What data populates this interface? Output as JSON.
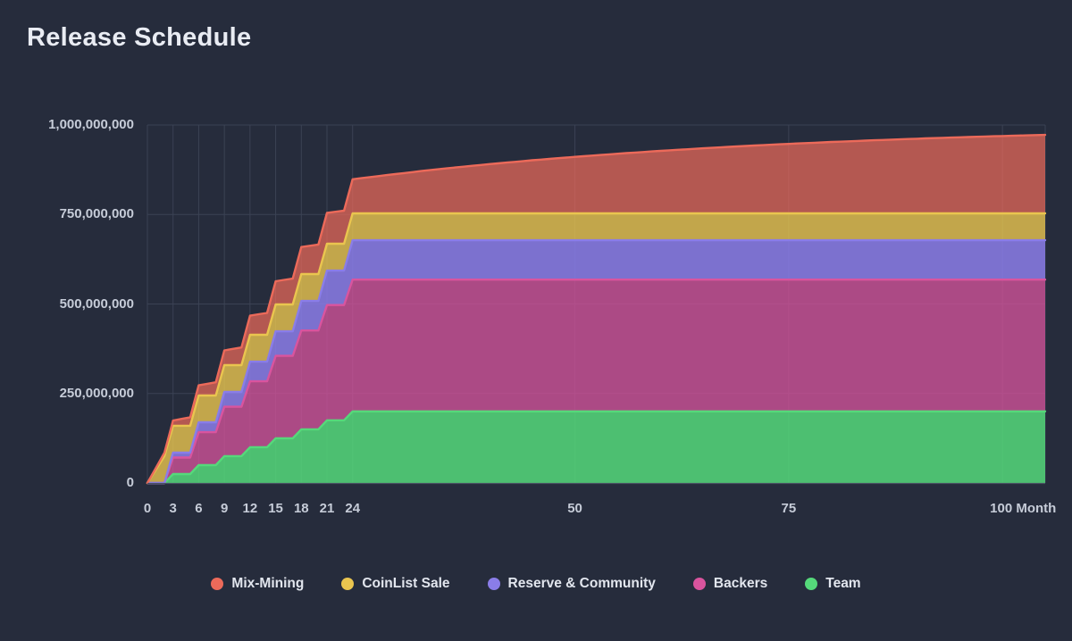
{
  "page": {
    "background_color": "#262c3c"
  },
  "colors": {
    "background": "#262c3c",
    "grid": "#3b4254",
    "axis_line": "#495062",
    "axis_text": "#c6ccd8",
    "title_text": "#e9ecf3",
    "legend_text": "#e2e6ee"
  },
  "chart_data": {
    "type": "area",
    "stacked": true,
    "title": "Release Schedule",
    "xlabel": "",
    "ylabel": "",
    "x_unit": "Month",
    "x_range": [
      0,
      105
    ],
    "y_range_tokens": [
      0,
      1000000000
    ],
    "value_unit_multiplier": 1000000,
    "grid": true,
    "legend_position": "bottom",
    "x_ticks": [
      {
        "month": 0,
        "label": "0"
      },
      {
        "month": 3,
        "label": "3"
      },
      {
        "month": 6,
        "label": "6"
      },
      {
        "month": 9,
        "label": "9"
      },
      {
        "month": 12,
        "label": "12"
      },
      {
        "month": 15,
        "label": "15"
      },
      {
        "month": 18,
        "label": "18"
      },
      {
        "month": 21,
        "label": "21"
      },
      {
        "month": 24,
        "label": "24"
      },
      {
        "month": 50,
        "label": "50"
      },
      {
        "month": 75,
        "label": "75"
      },
      {
        "month": 100,
        "label": "100 Month"
      }
    ],
    "y_ticks": [
      {
        "value_millions": 0,
        "label": "0"
      },
      {
        "value_millions": 250,
        "label": "250,000,000"
      },
      {
        "value_millions": 500,
        "label": "500,000,000"
      },
      {
        "value_millions": 750,
        "label": "750,000,000"
      },
      {
        "value_millions": 1000,
        "label": "1,000,000,000"
      }
    ],
    "series": [
      {
        "name": "Team",
        "color": "#55d97a",
        "fill_opacity": 0.85,
        "total_millions": 200,
        "vesting_note": "quarterly unlocks of 25M from month 3 to 24",
        "points_month_millions": [
          [
            0,
            0
          ],
          [
            2,
            0
          ],
          [
            3,
            25
          ],
          [
            5,
            25
          ],
          [
            6,
            50
          ],
          [
            8,
            50
          ],
          [
            9,
            75
          ],
          [
            11,
            75
          ],
          [
            12,
            100
          ],
          [
            14,
            100
          ],
          [
            15,
            125
          ],
          [
            17,
            125
          ],
          [
            18,
            150
          ],
          [
            20,
            150
          ],
          [
            21,
            175
          ],
          [
            23,
            175
          ],
          [
            24,
            200
          ],
          [
            105,
            200
          ]
        ]
      },
      {
        "name": "Backers",
        "color": "#d9549e",
        "fill_opacity": 0.75,
        "total_millions": 368,
        "vesting_note": "quarterly unlocks of 46M from month 3 to 24",
        "points_month_millions": [
          [
            0,
            0
          ],
          [
            2,
            0
          ],
          [
            3,
            46
          ],
          [
            5,
            46
          ],
          [
            6,
            92
          ],
          [
            8,
            92
          ],
          [
            9,
            138
          ],
          [
            11,
            138
          ],
          [
            12,
            184
          ],
          [
            14,
            184
          ],
          [
            15,
            230
          ],
          [
            17,
            230
          ],
          [
            18,
            276
          ],
          [
            20,
            276
          ],
          [
            21,
            322
          ],
          [
            23,
            322
          ],
          [
            24,
            368
          ],
          [
            105,
            368
          ]
        ]
      },
      {
        "name": "Reserve & Community",
        "color": "#8a7de8",
        "fill_opacity": 0.86,
        "total_millions": 110,
        "vesting_note": "quarterly unlocks of 13.75M from month 3 to 24",
        "points_month_millions": [
          [
            0,
            0
          ],
          [
            2,
            0
          ],
          [
            3,
            13.75
          ],
          [
            5,
            13.75
          ],
          [
            6,
            27.5
          ],
          [
            8,
            27.5
          ],
          [
            9,
            41.25
          ],
          [
            11,
            41.25
          ],
          [
            12,
            55
          ],
          [
            14,
            55
          ],
          [
            15,
            68.75
          ],
          [
            17,
            68.75
          ],
          [
            18,
            82.5
          ],
          [
            20,
            82.5
          ],
          [
            21,
            96.25
          ],
          [
            23,
            96.25
          ],
          [
            24,
            110
          ],
          [
            105,
            110
          ]
        ]
      },
      {
        "name": "CoinList Sale",
        "color": "#eac54f",
        "fill_opacity": 0.8,
        "total_millions": 75,
        "vesting_note": "fully unlocked by month 2",
        "points_month_millions": [
          [
            0,
            0
          ],
          [
            1,
            37.5
          ],
          [
            2,
            75
          ],
          [
            105,
            75
          ]
        ]
      },
      {
        "name": "Mix-Mining",
        "color": "#ec6a5a",
        "fill_opacity": 0.72,
        "total_millions": 250,
        "vesting_note": "continuous emission, decaying rate; ~95M by month 24, ~216M by month 100",
        "points_month_millions": [
          [
            0,
            0
          ],
          [
            1,
            5
          ],
          [
            2,
            9.8
          ],
          [
            3,
            14.6
          ],
          [
            4,
            19.2
          ],
          [
            5,
            23.8
          ],
          [
            6,
            28.3
          ],
          [
            8,
            36.9
          ],
          [
            10,
            45.3
          ],
          [
            12,
            53.3
          ],
          [
            14,
            61.1
          ],
          [
            16,
            68.5
          ],
          [
            18,
            75.7
          ],
          [
            20,
            82.7
          ],
          [
            22,
            89.3
          ],
          [
            24,
            95.3
          ],
          [
            28,
            107.2
          ],
          [
            32,
            118.2
          ],
          [
            36,
            128.3
          ],
          [
            40,
            137.7
          ],
          [
            45,
            148.4
          ],
          [
            50,
            158
          ],
          [
            55,
            166.8
          ],
          [
            60,
            174.7
          ],
          [
            65,
            181.9
          ],
          [
            70,
            188.4
          ],
          [
            75,
            194.2
          ],
          [
            80,
            199.5
          ],
          [
            85,
            204.3
          ],
          [
            90,
            208.7
          ],
          [
            95,
            212.6
          ],
          [
            100,
            216.2
          ],
          [
            105,
            219.4
          ]
        ]
      }
    ],
    "legend_order": [
      "Mix-Mining",
      "CoinList Sale",
      "Reserve & Community",
      "Backers",
      "Team"
    ]
  }
}
